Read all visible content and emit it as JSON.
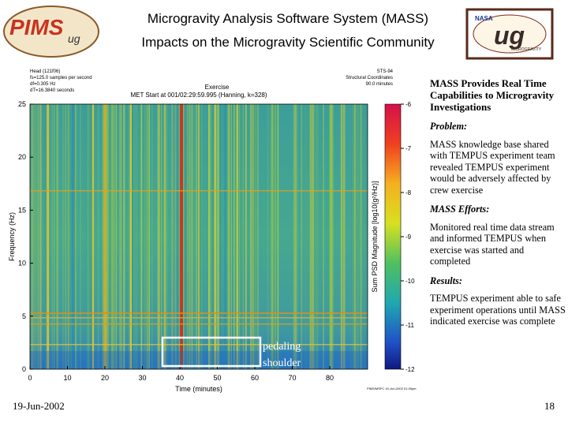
{
  "header": {
    "title_lines": [
      "Microgravity Analysis Software System (MASS)",
      "Impacts on the Microgravity Scientific Community"
    ],
    "logo_left": "PIMS",
    "logo_left_sub": "ug",
    "logo_right_top": "NASA",
    "logo_right": "ug",
    "logo_right_sub": "MICROGRAVITY"
  },
  "plot": {
    "info_left": [
      "Head (121f06)",
      "fs=125.0 samples per second",
      "df=0.305 Hz",
      "dT=16.3840 seconds"
    ],
    "info_center": [
      "Exercise",
      "MET Start at 001/02:29:59.995 (Hanning, k=328)"
    ],
    "info_right": [
      "STS-94",
      "Structural Coordinates",
      "90.0 minutes"
    ],
    "y_label": "Frequency (Hz)",
    "y_ticks": [
      0,
      5,
      10,
      15,
      20,
      25
    ],
    "x_label": "Time (minutes)",
    "x_ticks": [
      0,
      10,
      20,
      30,
      40,
      50,
      60,
      70,
      80
    ],
    "colorbar_label": "Sum PSD Magnitude [log10(g²/Hz)]",
    "colorbar_ticks": [
      -6,
      -7,
      -8,
      -9,
      -10,
      -11,
      -12
    ],
    "footnote": "PIMS/MSFC 19-Jun-2002 01:30pm"
  },
  "annotation": {
    "lines": [
      "pedaling",
      "shoulder"
    ]
  },
  "sidebar": {
    "heading": "MASS Provides Real Time Capabilities to Microgravity Investigations",
    "sections": [
      {
        "label": "Problem:",
        "text": "MASS knowledge base shared with TEMPUS experiment team revealed TEMPUS experiment would be adversely affected by crew exercise"
      },
      {
        "label": "MASS Efforts:",
        "text": "Monitored real time data stream and informed TEMPUS when exercise was started and completed"
      },
      {
        "label": "Results:",
        "text": "TEMPUS experiment able to safe experiment operations until MASS indicated exercise was complete"
      }
    ]
  },
  "footer": {
    "date": "19-Jun-2002",
    "page": "18"
  }
}
